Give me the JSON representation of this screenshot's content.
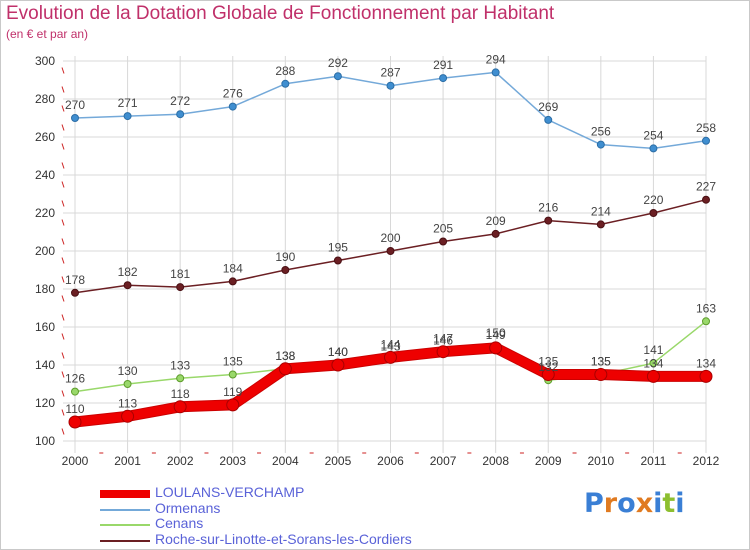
{
  "header": {
    "title": "Evolution de la Dotation Globale de Fonctionnement par Habitant",
    "subtitle": "(en € et par an)"
  },
  "colors": {
    "accent": "#c0306a",
    "legend_text": "#5a62d8",
    "grid": "#d8d8d8",
    "axis_tick": "#cc2222"
  },
  "chart_data": {
    "type": "line",
    "title": "Evolution de la Dotation Globale de Fonctionnement par Habitant",
    "subtitle": "(en € et par an)",
    "xlabel": "",
    "ylabel": "",
    "ylim": [
      100,
      300
    ],
    "yticks": [
      100,
      120,
      140,
      160,
      180,
      200,
      220,
      240,
      260,
      280,
      300
    ],
    "x": [
      "2000",
      "2001",
      "2002",
      "2003",
      "2004",
      "2005",
      "2006",
      "2007",
      "2008",
      "2009",
      "2010",
      "2011",
      "2012"
    ],
    "grid": true,
    "legend_position": "bottom",
    "series": [
      {
        "name": "Roche-sur-Linotte-et-Sorans-les-Cordiers",
        "color": "#6b1f23",
        "values": [
          178,
          182,
          181,
          184,
          190,
          195,
          200,
          205,
          209,
          216,
          214,
          220,
          227
        ]
      },
      {
        "name": "Cenans",
        "color": "#99d86a",
        "values": [
          126,
          130,
          133,
          135,
          138,
          140,
          143,
          146,
          150,
          132,
          135,
          141,
          163
        ]
      },
      {
        "name": "Ormenans",
        "color": "#74a9d9",
        "values": [
          270,
          271,
          272,
          276,
          288,
          292,
          287,
          291,
          294,
          269,
          256,
          254,
          258
        ]
      },
      {
        "name": "LOULANS-VERCHAMP",
        "color": "#ee0000",
        "values": [
          110,
          113,
          118,
          119,
          138,
          140,
          144,
          147,
          149,
          135,
          135,
          134,
          134
        ]
      }
    ]
  },
  "legend": [
    {
      "label": "LOULANS-VERCHAMP",
      "color": "#ee0000"
    },
    {
      "label": "Ormenans",
      "color": "#74a9d9"
    },
    {
      "label": "Cenans",
      "color": "#99d86a"
    },
    {
      "label": "Roche-sur-Linotte-et-Sorans-les-Cordiers",
      "color": "#6b1f23"
    }
  ],
  "logo": {
    "text": "Proxiti",
    "letters": [
      "P",
      "r",
      "o",
      "x",
      "i",
      "t",
      "i"
    ],
    "letter_colors": [
      "#3a7fd5",
      "#e07a20",
      "#3a7fd5",
      "#e07a20",
      "#3a7fd5",
      "#8dbf30",
      "#3a7fd5"
    ]
  }
}
